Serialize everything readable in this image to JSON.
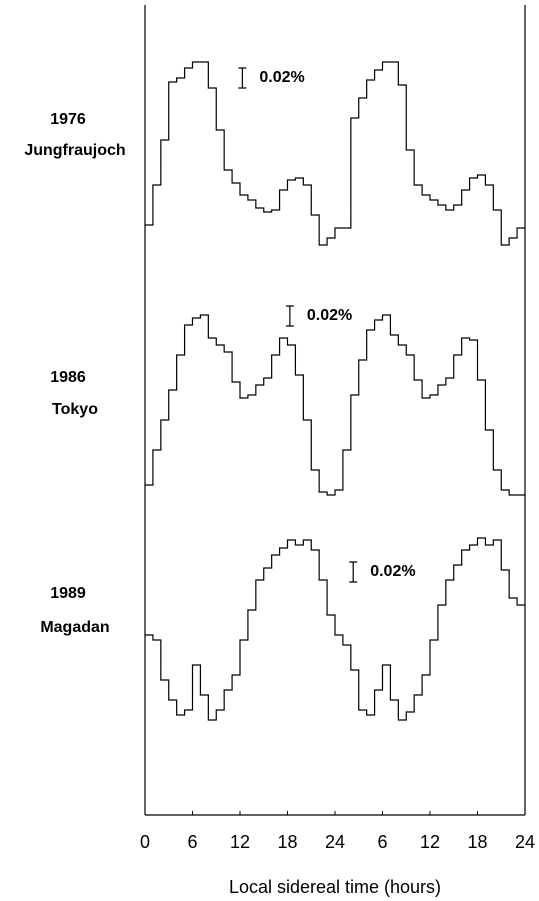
{
  "chart_data": [
    {
      "type": "step",
      "year": "1976",
      "station": "Jungfraujoch",
      "color": "#000000",
      "x": [
        0,
        1,
        2,
        3,
        4,
        5,
        6,
        7,
        8,
        9,
        10,
        11,
        12,
        13,
        14,
        15,
        16,
        17,
        18,
        19,
        20,
        21,
        22,
        23,
        24,
        25,
        26,
        27,
        28,
        29,
        30,
        31,
        32,
        33,
        34,
        35,
        36,
        37,
        38,
        39,
        40,
        41,
        42,
        43,
        44,
        45,
        46,
        47
      ],
      "values": [
        -0.07,
        -0.03,
        0.015,
        0.073,
        0.077,
        0.087,
        0.093,
        0.093,
        0.067,
        0.025,
        -0.015,
        -0.028,
        -0.04,
        -0.045,
        -0.053,
        -0.057,
        -0.055,
        -0.035,
        -0.025,
        -0.023,
        -0.03,
        -0.06,
        -0.09,
        -0.083,
        -0.073,
        -0.073,
        0.037,
        0.057,
        0.075,
        0.085,
        0.093,
        0.093,
        0.07,
        0.005,
        -0.03,
        -0.04,
        -0.045,
        -0.05,
        -0.055,
        -0.05,
        -0.035,
        -0.023,
        -0.02,
        -0.03,
        -0.055,
        -0.09,
        -0.083,
        -0.073
      ],
      "ylim": [
        -0.12,
        0.12
      ],
      "xlim": [
        0,
        48
      ],
      "scale_bar": 0.02,
      "scale_bar_label": "0.02%"
    },
    {
      "type": "step",
      "year": "1986",
      "station": "Tokyo",
      "color": "#000000",
      "x": [
        0,
        1,
        2,
        3,
        4,
        5,
        6,
        7,
        8,
        9,
        10,
        11,
        12,
        13,
        14,
        15,
        16,
        17,
        18,
        19,
        20,
        21,
        22,
        23,
        24,
        25,
        26,
        27,
        28,
        29,
        30,
        31,
        32,
        33,
        34,
        35,
        36,
        37,
        38,
        39,
        40,
        41,
        42,
        43,
        44,
        45,
        46,
        47
      ],
      "values": [
        -0.08,
        -0.045,
        -0.015,
        0.015,
        0.05,
        0.08,
        0.087,
        0.09,
        0.067,
        0.06,
        0.053,
        0.023,
        0.007,
        0.01,
        0.02,
        0.027,
        0.05,
        0.067,
        0.06,
        0.03,
        -0.015,
        -0.065,
        -0.087,
        -0.09,
        -0.085,
        -0.045,
        0.01,
        0.045,
        0.075,
        0.085,
        0.09,
        0.07,
        0.06,
        0.05,
        0.025,
        0.007,
        0.01,
        0.02,
        0.027,
        0.05,
        0.067,
        0.065,
        0.025,
        -0.025,
        -0.065,
        -0.085,
        -0.09,
        -0.09
      ],
      "ylim": [
        -0.12,
        0.12
      ],
      "xlim": [
        0,
        48
      ],
      "scale_bar": 0.02,
      "scale_bar_label": "0.02%"
    },
    {
      "type": "step",
      "year": "1989",
      "station": "Magadan",
      "color": "#000000",
      "x": [
        0,
        1,
        2,
        3,
        4,
        5,
        6,
        7,
        8,
        9,
        10,
        11,
        12,
        13,
        14,
        15,
        16,
        17,
        18,
        19,
        20,
        21,
        22,
        23,
        24,
        25,
        26,
        27,
        28,
        29,
        30,
        31,
        32,
        33,
        34,
        35,
        36,
        37,
        38,
        39,
        40,
        41,
        42,
        43,
        44,
        45,
        46,
        47
      ],
      "values": [
        -0.005,
        -0.01,
        -0.05,
        -0.07,
        -0.085,
        -0.08,
        -0.035,
        -0.065,
        -0.09,
        -0.08,
        -0.06,
        -0.045,
        -0.01,
        0.02,
        0.05,
        0.062,
        0.075,
        0.082,
        0.09,
        0.085,
        0.09,
        0.08,
        0.05,
        0.015,
        -0.005,
        -0.015,
        -0.04,
        -0.08,
        -0.085,
        -0.06,
        -0.035,
        -0.07,
        -0.09,
        -0.082,
        -0.065,
        -0.045,
        -0.01,
        0.025,
        0.05,
        0.065,
        0.08,
        0.085,
        0.092,
        0.085,
        0.09,
        0.06,
        0.032,
        0.025
      ],
      "ylim": [
        -0.12,
        0.12
      ],
      "xlim": [
        0,
        48
      ],
      "scale_bar": 0.02,
      "scale_bar_label": "0.02%",
      "xticks": [
        0,
        6,
        12,
        18,
        24,
        {
          "value": 30,
          "label": "6"
        },
        {
          "value": 36,
          "label": "12"
        },
        {
          "value": 42,
          "label": "18"
        },
        {
          "value": 48,
          "label": "24"
        }
      ],
      "x_label": "Local sidereal time (hours)"
    }
  ]
}
